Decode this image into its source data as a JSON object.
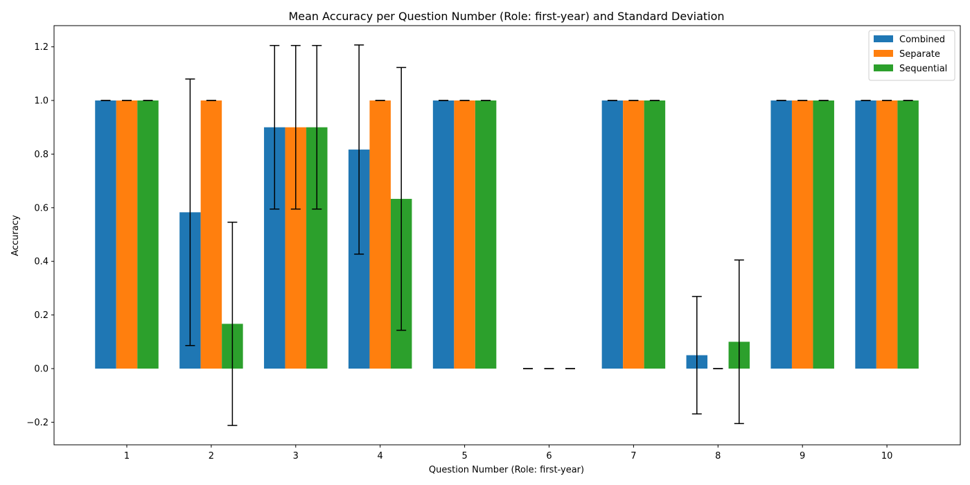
{
  "chart_data": {
    "type": "bar",
    "title": "Mean Accuracy per Question Number (Role: first-year) and Standard Deviation",
    "xlabel": "Question Number (Role: first-year)",
    "ylabel": "Accuracy",
    "categories": [
      "1",
      "2",
      "3",
      "4",
      "5",
      "6",
      "7",
      "8",
      "9",
      "10"
    ],
    "ylim": [
      -0.29,
      1.275
    ],
    "yticks": [
      -0.2,
      0.0,
      0.2,
      0.4,
      0.6,
      0.8,
      1.0,
      1.2
    ],
    "ytick_labels": [
      "−0.2",
      "0.0",
      "0.2",
      "0.4",
      "0.6",
      "0.8",
      "1.0",
      "1.2"
    ],
    "grid": false,
    "legend_position": "top-right",
    "series": [
      {
        "name": "Combined",
        "color": "#1f77b4",
        "values": [
          1.0,
          0.583,
          0.9,
          0.817,
          1.0,
          0.0,
          1.0,
          0.05,
          1.0,
          1.0
        ],
        "errors": [
          0.0,
          0.497,
          0.305,
          0.39,
          0.0,
          0.0,
          0.0,
          0.219,
          0.0,
          0.0
        ]
      },
      {
        "name": "Separate",
        "color": "#ff7f0e",
        "values": [
          1.0,
          1.0,
          0.9,
          1.0,
          1.0,
          0.0,
          1.0,
          0.0,
          1.0,
          1.0
        ],
        "errors": [
          0.0,
          0.0,
          0.305,
          0.0,
          0.0,
          0.0,
          0.0,
          0.0,
          0.0,
          0.0
        ]
      },
      {
        "name": "Sequential",
        "color": "#2ca02c",
        "values": [
          1.0,
          0.167,
          0.9,
          0.633,
          1.0,
          0.0,
          1.0,
          0.1,
          1.0,
          1.0
        ],
        "errors": [
          0.0,
          0.379,
          0.305,
          0.49,
          0.0,
          0.0,
          0.0,
          0.305,
          0.0,
          0.0
        ]
      }
    ]
  }
}
